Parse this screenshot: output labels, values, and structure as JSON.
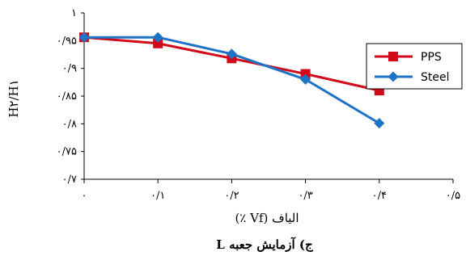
{
  "chart_data": {
    "type": "line",
    "x": [
      "0",
      "0.1",
      "0.2",
      "0.3",
      "0.4"
    ],
    "series": [
      {
        "name": "PPS",
        "color": "#d10a1a",
        "marker": "square",
        "values": [
          0.956,
          0.945,
          0.918,
          0.89,
          0.86
        ]
      },
      {
        "name": "Steel",
        "color": "#1e73c7",
        "marker": "diamond",
        "values": [
          0.956,
          0.956,
          0.926,
          0.88,
          0.801
        ]
      }
    ],
    "xlim": [
      0,
      0.5
    ],
    "ylim": [
      0.7,
      1.0
    ],
    "x_ticks": [
      "۰",
      "۰/۱",
      "۰/۲",
      "۰/۳",
      "۰/۴",
      "۰/۵"
    ],
    "y_ticks": [
      "۰/۷",
      "۰/۷۵",
      "۰/۸",
      "۰/۸۵",
      "۰/۹",
      "۰/۹۵",
      "۱"
    ],
    "xlabel": "الیاف (Vf ٪)",
    "ylabel": "H۲/H۱",
    "caption": "ج) آزمایش جعبه L",
    "legend_position": "top-right",
    "grid": false
  }
}
